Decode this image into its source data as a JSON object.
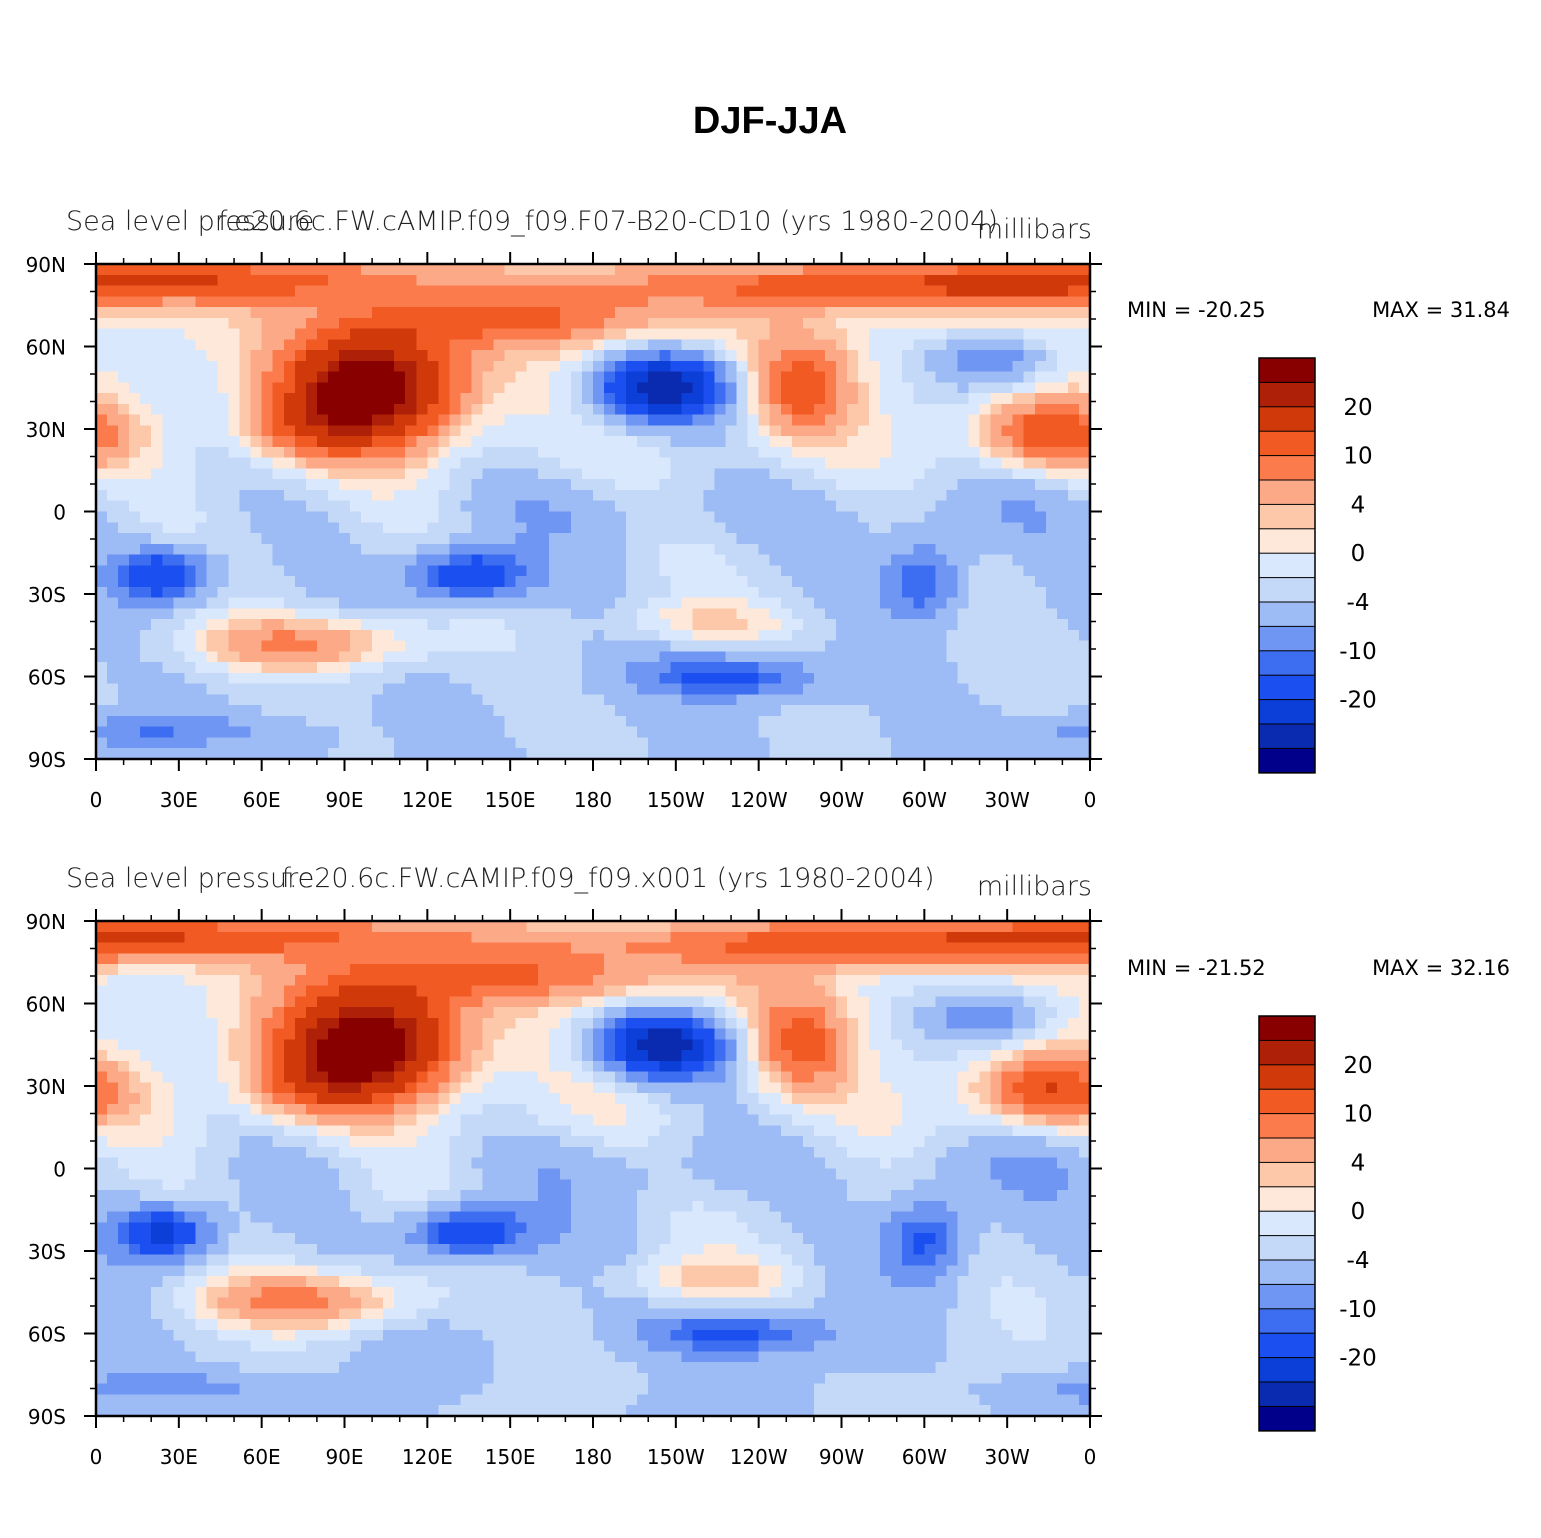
{
  "chart_data": {
    "type": "heatmap",
    "title": "DJF-JJA",
    "colorbar": {
      "colors": [
        "#00008b",
        "#0a2ab0",
        "#0c3ed8",
        "#1c4ff0",
        "#3d6df0",
        "#6f96f3",
        "#9dbbf5",
        "#c4d8f7",
        "#d9e8fc",
        "#fde8d9",
        "#fcc8a9",
        "#fca987",
        "#fb7b4c",
        "#f15a22",
        "#d03a0b",
        "#ae2108",
        "#880000"
      ],
      "labels": [
        "-20",
        "-10",
        "-4",
        "0",
        "4",
        "10",
        "20"
      ]
    },
    "x_ticks": [
      "0",
      "30E",
      "60E",
      "90E",
      "120E",
      "150E",
      "180",
      "150W",
      "120W",
      "90W",
      "60W",
      "30W",
      "0"
    ],
    "y_ticks": [
      "90N",
      "60N",
      "30N",
      "0",
      "30S",
      "60S",
      "90S"
    ],
    "xlim": [
      0,
      360
    ],
    "ylim": [
      -90,
      90
    ],
    "panels": [
      {
        "title_left": "Sea level pressure",
        "title_center": "f.e20.6c.FW.cAMIP.f09_f09.F07-B20-CD10 (yrs 1980-2004)",
        "title_right": "millibars",
        "min_label": "MIN = -20.25",
        "max_label": "MAX =   31.84",
        "units": "millibars"
      },
      {
        "title_left": "Sea level pressure",
        "title_center": "f.e20.6c.FW.cAMIP.f09_f09.x001 (yrs 1980-2004)",
        "title_right": "millibars",
        "min_label": "MIN = -21.52",
        "max_label": "MAX =   32.16",
        "units": "millibars"
      }
    ]
  }
}
